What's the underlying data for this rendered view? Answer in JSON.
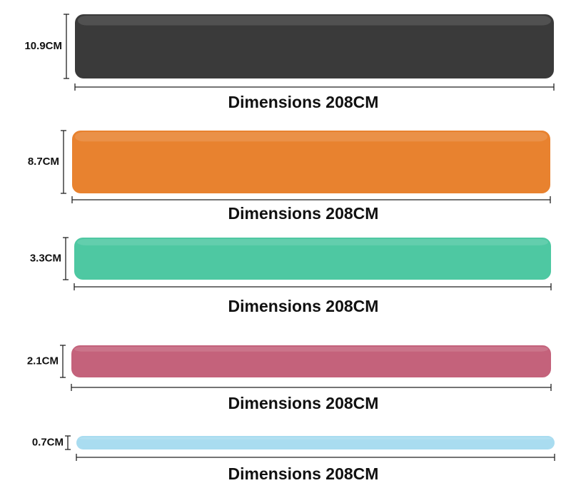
{
  "bands": [
    {
      "width": "10.9CM",
      "length": "Dimensions 208CM",
      "color": "#3a3a3a"
    },
    {
      "width": "8.7CM",
      "length": "Dimensions 208CM",
      "color": "#e8822f"
    },
    {
      "width": "3.3CM",
      "length": "Dimensions 208CM",
      "color": "#4ec8a2"
    },
    {
      "width": "2.1CM",
      "length": "Dimensions 208CM",
      "color": "#c4627b"
    },
    {
      "width": "0.7CM",
      "length": "Dimensions 208CM",
      "color": "#a9dcf0"
    }
  ]
}
